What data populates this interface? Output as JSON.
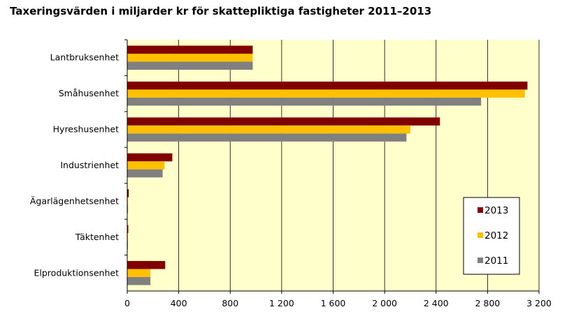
{
  "title": "Taxeringsvärden i miljarder kr för skattepliktiga fastigheter 2011–2013",
  "chart_data": {
    "type": "bar",
    "orientation": "horizontal",
    "title": "Taxeringsvärden i miljarder kr för skattepliktiga fastigheter 2011–2013",
    "xlabel": "",
    "ylabel": "",
    "categories": [
      "Lantbruksenhet",
      "Småhusenhet",
      "Hyreshusenhet",
      "Industrienhet",
      "Ägarlägenhetsenhet",
      "Täktenhet",
      "Elproduktionsenhet"
    ],
    "series": [
      {
        "name": "2013",
        "color": "#800000",
        "values": [
          975,
          3110,
          2430,
          350,
          12,
          8,
          295
        ]
      },
      {
        "name": "2012",
        "color": "#ffc000",
        "values": [
          975,
          3090,
          2200,
          290,
          6,
          5,
          180
        ]
      },
      {
        "name": "2011",
        "color": "#808080",
        "values": [
          975,
          2750,
          2170,
          275,
          6,
          5,
          180
        ]
      }
    ],
    "xlim": [
      0,
      3200
    ],
    "xticks": [
      0,
      400,
      800,
      1200,
      1600,
      2000,
      2400,
      2800,
      3200
    ],
    "xtick_labels": [
      "0",
      "400",
      "800",
      "1 200",
      "1 600",
      "2 000",
      "2 400",
      "2 800",
      "3 200"
    ],
    "grid": true,
    "legend_position": "bottom-right",
    "plot_background": "#ffffcc"
  }
}
